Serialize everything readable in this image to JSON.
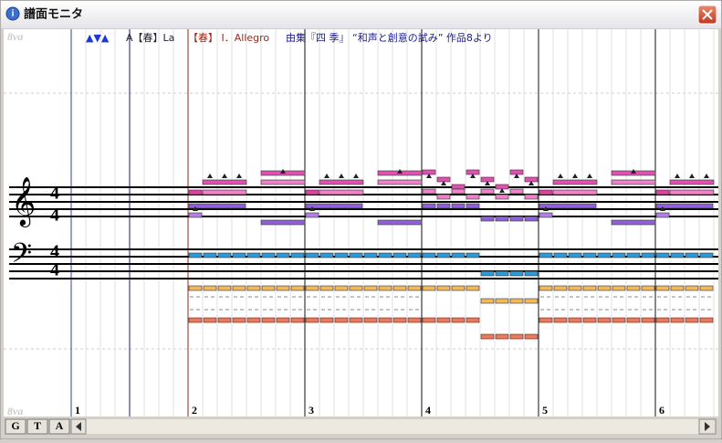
{
  "window": {
    "title": "譜面モニタ"
  },
  "header": {
    "marker": "▲▼▲",
    "parts": [
      "A【春】La",
      "【春】 I．Allegro",
      "由集『四 季』 “和声と創意の試み” 作品8より"
    ]
  },
  "octave_marks": {
    "top": "8va",
    "bottom": "8va"
  },
  "time_signatures": [
    {
      "top": "4",
      "bottom": "4"
    },
    {
      "top": "4",
      "bottom": "4"
    }
  ],
  "measures": [
    "1",
    "2",
    "3",
    "4",
    "5",
    "6"
  ],
  "toolbar": {
    "buttons": [
      "G",
      "T",
      "A"
    ]
  }
}
